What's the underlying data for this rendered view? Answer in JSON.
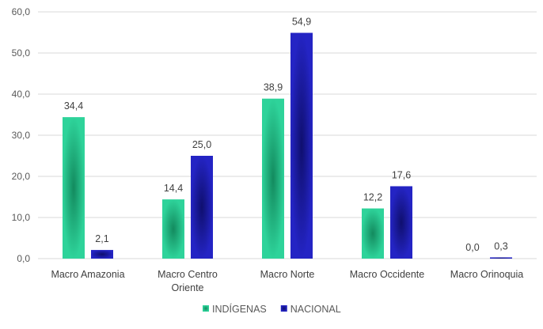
{
  "chart_data": {
    "type": "bar",
    "categories": [
      [
        "Macro Amazonia"
      ],
      [
        "Macro Centro",
        "Oriente"
      ],
      [
        "Macro Norte"
      ],
      [
        "Macro Occidente"
      ],
      [
        "Macro Orinoquia"
      ]
    ],
    "series": [
      {
        "name": "INDÍGENAS",
        "values": [
          34.4,
          14.4,
          38.9,
          12.2,
          0.0
        ],
        "labels": [
          "34,4",
          "14,4",
          "38,9",
          "12,2",
          "0,0"
        ],
        "color_edge": "#2ed39a",
        "color_center": "#138a5e"
      },
      {
        "name": "NACIONAL",
        "values": [
          2.1,
          25.0,
          54.9,
          17.6,
          0.3
        ],
        "labels": [
          "2,1",
          "25,0",
          "54,9",
          "17,6",
          "0,3"
        ],
        "color_edge": "#2424c4",
        "color_center": "#0f0f6e"
      }
    ],
    "ylim": [
      0,
      60
    ],
    "yticks": [
      0,
      10,
      20,
      30,
      40,
      50,
      60
    ],
    "ytick_labels": [
      "0,0",
      "10,0",
      "20,0",
      "30,0",
      "40,0",
      "50,0",
      "60,0"
    ],
    "grid": true,
    "legend": "bottom-center",
    "title": "",
    "xlabel": "",
    "ylabel": ""
  }
}
